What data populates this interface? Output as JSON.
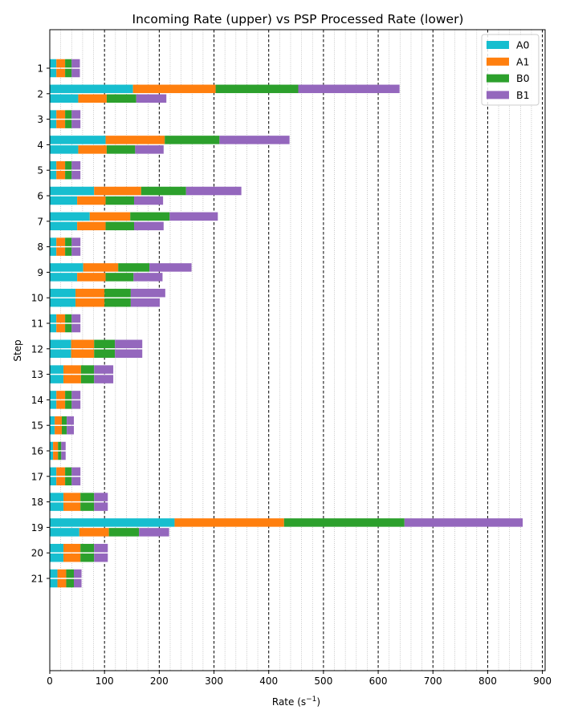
{
  "chart_data": {
    "type": "bar",
    "orientation": "horizontal",
    "stacked": true,
    "title": "Incoming Rate (upper) vs PSP Processed Rate (lower)",
    "xlabel_main": "Rate (s",
    "xlabel_sup": "−1",
    "xlabel_end": ")",
    "ylabel": "Step",
    "xlim": [
      0,
      905
    ],
    "x_ticks": [
      "0",
      "100",
      "200",
      "300",
      "400",
      "500",
      "600",
      "700",
      "800",
      "900"
    ],
    "x_tick_values": [
      0,
      100,
      200,
      300,
      400,
      500,
      600,
      700,
      800,
      900
    ],
    "minor_grid_step": 20,
    "major_grid_step": 100,
    "grid": true,
    "legend_position": "top-right",
    "categories": [
      "1",
      "2",
      "3",
      "4",
      "5",
      "6",
      "7",
      "8",
      "9",
      "10",
      "11",
      "12",
      "13",
      "14",
      "15",
      "16",
      "17",
      "18",
      "19",
      "20",
      "21"
    ],
    "series": [
      {
        "name": "A0",
        "color": "#17becf",
        "incoming": [
          12,
          152,
          12,
          102,
          12,
          81,
          73,
          12,
          61,
          47,
          12,
          39,
          25,
          12,
          9,
          6,
          12,
          25,
          228,
          25,
          14
        ],
        "processed": [
          12,
          52,
          12,
          52,
          12,
          50,
          50,
          12,
          50,
          47,
          12,
          39,
          25,
          12,
          9,
          6,
          12,
          25,
          54,
          25,
          14
        ]
      },
      {
        "name": "A1",
        "color": "#ff7f0e",
        "incoming": [
          16,
          151,
          16,
          108,
          16,
          86,
          74,
          16,
          64,
          53,
          16,
          42,
          32,
          16,
          13,
          9,
          16,
          31,
          200,
          31,
          16
        ],
        "processed": [
          16,
          52,
          16,
          52,
          16,
          52,
          52,
          16,
          52,
          53,
          16,
          42,
          32,
          16,
          13,
          9,
          16,
          31,
          54,
          31,
          16
        ]
      },
      {
        "name": "B0",
        "color": "#2ca02c",
        "incoming": [
          12,
          151,
          12,
          100,
          12,
          82,
          72,
          12,
          57,
          48,
          12,
          38,
          24,
          12,
          9,
          6,
          12,
          25,
          220,
          25,
          14
        ],
        "processed": [
          12,
          54,
          12,
          52,
          12,
          52,
          52,
          12,
          51,
          48,
          12,
          38,
          24,
          12,
          9,
          6,
          12,
          25,
          55,
          25,
          14
        ]
      },
      {
        "name": "B1",
        "color": "#9467bd",
        "incoming": [
          15,
          185,
          16,
          128,
          16,
          101,
          88,
          16,
          77,
          63,
          16,
          50,
          35,
          16,
          13,
          8,
          16,
          25,
          216,
          25,
          14
        ],
        "processed": [
          15,
          55,
          16,
          52,
          16,
          53,
          54,
          16,
          53,
          53,
          16,
          50,
          35,
          16,
          13,
          8,
          16,
          25,
          55,
          25,
          14
        ]
      }
    ]
  }
}
